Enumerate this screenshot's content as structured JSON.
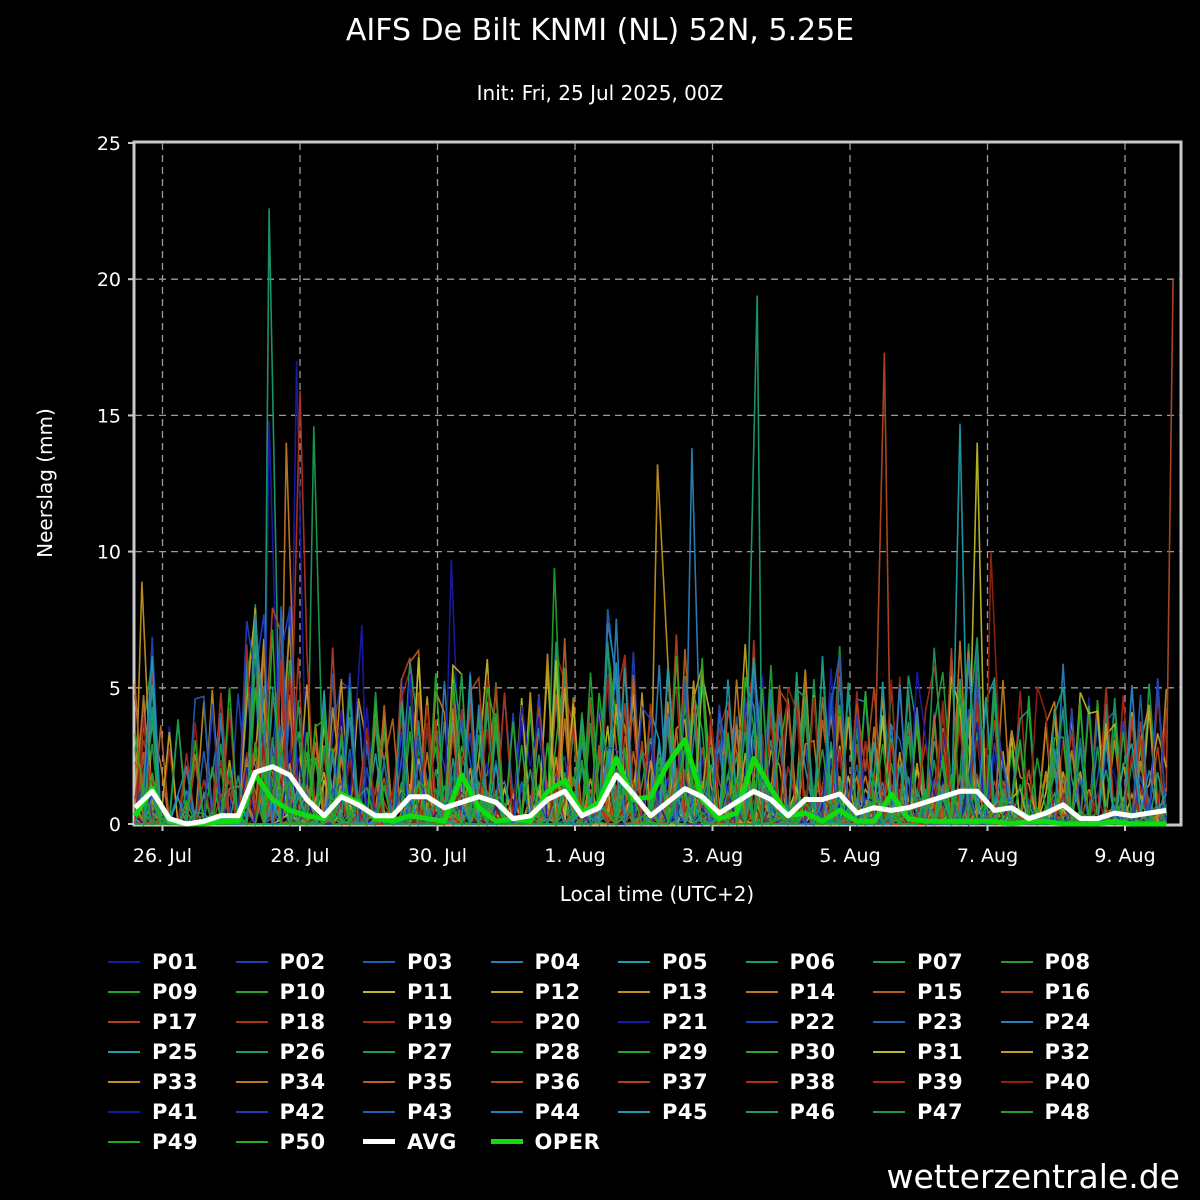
{
  "title": "AIFS De Bilt KNMI (NL) 52N, 5.25E",
  "subtitle": "Init: Fri, 25 Jul 2025, 00Z",
  "brand": "wetterzentrale.de",
  "chart_data": {
    "type": "line",
    "xlabel": "Local time (UTC+2)",
    "ylabel": "Neerslag (mm)",
    "ylim": [
      0,
      25
    ],
    "yticks": [
      0,
      5,
      10,
      15,
      20,
      25
    ],
    "xlim": [
      0,
      15.2
    ],
    "xticks": [
      {
        "label": "26. Jul",
        "x": 0.4
      },
      {
        "label": "28. Jul",
        "x": 2.4
      },
      {
        "label": "30. Jul",
        "x": 4.4
      },
      {
        "label": "1. Aug",
        "x": 6.4
      },
      {
        "label": "3. Aug",
        "x": 8.4
      },
      {
        "label": "5. Aug",
        "x": 10.4
      },
      {
        "label": "7. Aug",
        "x": 12.4
      },
      {
        "label": "9. Aug",
        "x": 14.4
      }
    ],
    "grid": true,
    "background": "#000000",
    "member_names": [
      "P01",
      "P02",
      "P03",
      "P04",
      "P05",
      "P06",
      "P07",
      "P08",
      "P09",
      "P10",
      "P11",
      "P12",
      "P13",
      "P14",
      "P15",
      "P16",
      "P17",
      "P18",
      "P19",
      "P20",
      "P21",
      "P22",
      "P23",
      "P24",
      "P25",
      "P26",
      "P27",
      "P28",
      "P29",
      "P30",
      "P31",
      "P32",
      "P33",
      "P34",
      "P35",
      "P36",
      "P37",
      "P38",
      "P39",
      "P40",
      "P41",
      "P42",
      "P43",
      "P44",
      "P45",
      "P46",
      "P47",
      "P48",
      "P49",
      "P50"
    ],
    "member_colors": [
      "#1a1aa8",
      "#1f3fb8",
      "#2060b0",
      "#2a80b8",
      "#1f9aa8",
      "#1a9a70",
      "#1a9a50",
      "#20a030",
      "#20a828",
      "#28a828",
      "#b8b828",
      "#c0a020",
      "#c09020",
      "#c07820",
      "#b86020",
      "#b04820",
      "#b04020",
      "#b03018",
      "#a82818",
      "#902010",
      "#1a1aa8",
      "#1f3fb8",
      "#2060b0",
      "#2a80b8",
      "#1f9aa8",
      "#1a9a70",
      "#1a9a50",
      "#20a030",
      "#20a828",
      "#28a828",
      "#b8b828",
      "#c0a020",
      "#c09020",
      "#c07820",
      "#b86020",
      "#b04820",
      "#b04020",
      "#b03018",
      "#a82818",
      "#902010",
      "#1a1aa8",
      "#1f3fb8",
      "#2060b0",
      "#2a80b8",
      "#1f9aa8",
      "#1a9a70",
      "#1a9a50",
      "#20a030",
      "#20a828",
      "#28a828"
    ],
    "peaks": [
      {
        "member": "P33",
        "x": 0.1,
        "y": 8.9
      },
      {
        "member": "P06",
        "x": 1.95,
        "y": 22.6
      },
      {
        "member": "P01",
        "x": 2.35,
        "y": 17.0
      },
      {
        "member": "P18",
        "x": 2.4,
        "y": 15.9
      },
      {
        "member": "P14",
        "x": 2.2,
        "y": 14.0
      },
      {
        "member": "P07",
        "x": 2.6,
        "y": 14.6
      },
      {
        "member": "P01",
        "x": 1.95,
        "y": 14.8
      },
      {
        "member": "P41",
        "x": 3.3,
        "y": 7.3
      },
      {
        "member": "P21",
        "x": 4.6,
        "y": 9.7
      },
      {
        "member": "P28",
        "x": 6.1,
        "y": 9.4
      },
      {
        "member": "P13",
        "x": 7.6,
        "y": 13.2
      },
      {
        "member": "P24",
        "x": 8.1,
        "y": 13.8
      },
      {
        "member": "P46",
        "x": 9.05,
        "y": 19.4
      },
      {
        "member": "P16",
        "x": 10.9,
        "y": 17.3
      },
      {
        "member": "P45",
        "x": 12.0,
        "y": 14.7
      },
      {
        "member": "P31",
        "x": 12.25,
        "y": 14.0
      },
      {
        "member": "P40",
        "x": 12.45,
        "y": 10.0
      },
      {
        "member": "P16",
        "x": 15.1,
        "y": 20.0
      }
    ],
    "series": [
      {
        "name": "AVG",
        "color": "#ffffff",
        "x": [
          0,
          0.25,
          0.5,
          0.75,
          1,
          1.25,
          1.5,
          1.75,
          2,
          2.25,
          2.5,
          2.75,
          3,
          3.25,
          3.5,
          3.75,
          4,
          4.25,
          4.5,
          4.75,
          5,
          5.25,
          5.5,
          5.75,
          6,
          6.25,
          6.5,
          6.75,
          7,
          7.25,
          7.5,
          7.75,
          8,
          8.25,
          8.5,
          8.75,
          9,
          9.25,
          9.5,
          9.75,
          10,
          10.25,
          10.5,
          10.75,
          11,
          11.25,
          11.5,
          11.75,
          12,
          12.25,
          12.5,
          12.75,
          13,
          13.25,
          13.5,
          13.75,
          14,
          14.25,
          14.5,
          14.75,
          15
        ],
        "y": [
          0.6,
          1.2,
          0.2,
          0.0,
          0.1,
          0.3,
          0.3,
          1.9,
          2.1,
          1.8,
          0.9,
          0.3,
          1.0,
          0.7,
          0.3,
          0.3,
          1.0,
          1.0,
          0.6,
          0.8,
          1.0,
          0.8,
          0.2,
          0.3,
          0.9,
          1.2,
          0.3,
          0.6,
          1.8,
          1.1,
          0.3,
          0.8,
          1.3,
          1.0,
          0.4,
          0.8,
          1.2,
          0.9,
          0.3,
          0.9,
          0.9,
          1.1,
          0.4,
          0.6,
          0.5,
          0.6,
          0.8,
          1.0,
          1.2,
          1.2,
          0.5,
          0.6,
          0.2,
          0.4,
          0.7,
          0.2,
          0.2,
          0.4,
          0.3,
          0.4,
          0.5
        ]
      },
      {
        "name": "OPER",
        "color": "#10dd10",
        "x": [
          0,
          0.25,
          0.5,
          0.75,
          1,
          1.25,
          1.5,
          1.75,
          2,
          2.25,
          2.5,
          2.75,
          3,
          3.25,
          3.5,
          3.75,
          4,
          4.25,
          4.5,
          4.75,
          5,
          5.25,
          5.5,
          5.75,
          6,
          6.25,
          6.5,
          6.75,
          7,
          7.25,
          7.5,
          7.75,
          8,
          8.25,
          8.5,
          8.75,
          9,
          9.25,
          9.5,
          9.75,
          10,
          10.25,
          10.5,
          10.75,
          11,
          11.25,
          11.5,
          11.75,
          12,
          12.25,
          12.5,
          12.75,
          13,
          13.25,
          13.5,
          13.75,
          14,
          14.25,
          14.5,
          14.75,
          15
        ],
        "y": [
          0.3,
          1.3,
          0.1,
          0.0,
          0.0,
          0.1,
          0.1,
          1.8,
          0.9,
          0.5,
          0.3,
          0.2,
          1.1,
          0.8,
          0.2,
          0.1,
          0.3,
          0.2,
          0.1,
          1.8,
          0.6,
          0.1,
          0.2,
          0.1,
          1.2,
          1.6,
          0.4,
          0.8,
          2.4,
          0.9,
          1.0,
          2.2,
          3.1,
          0.9,
          0.2,
          0.4,
          2.4,
          1.3,
          0.3,
          0.4,
          0.1,
          0.5,
          0.1,
          0.1,
          1.1,
          0.2,
          0.1,
          0.1,
          0.1,
          0.1,
          0.1,
          0.0,
          0.1,
          0.1,
          0.0,
          0.0,
          0.0,
          0.1,
          0.0,
          0.0,
          0.0
        ]
      }
    ]
  },
  "legend": {
    "members": [
      {
        "label": "P01",
        "color": "#1a1aa8"
      },
      {
        "label": "P02",
        "color": "#1f3fb8"
      },
      {
        "label": "P03",
        "color": "#2060b0"
      },
      {
        "label": "P04",
        "color": "#2a80b8"
      },
      {
        "label": "P05",
        "color": "#1f9aa8"
      },
      {
        "label": "P06",
        "color": "#1a9a70"
      },
      {
        "label": "P07",
        "color": "#1a9a50"
      },
      {
        "label": "P08",
        "color": "#20a030"
      },
      {
        "label": "P09",
        "color": "#20a828"
      },
      {
        "label": "P10",
        "color": "#28a828"
      },
      {
        "label": "P11",
        "color": "#b8b828"
      },
      {
        "label": "P12",
        "color": "#c0a020"
      },
      {
        "label": "P13",
        "color": "#c09020"
      },
      {
        "label": "P14",
        "color": "#c07820"
      },
      {
        "label": "P15",
        "color": "#b86020"
      },
      {
        "label": "P16",
        "color": "#b04820"
      },
      {
        "label": "P17",
        "color": "#b04020"
      },
      {
        "label": "P18",
        "color": "#b03018"
      },
      {
        "label": "P19",
        "color": "#a82818"
      },
      {
        "label": "P20",
        "color": "#902010"
      },
      {
        "label": "P21",
        "color": "#1a1aa8"
      },
      {
        "label": "P22",
        "color": "#1f3fb8"
      },
      {
        "label": "P23",
        "color": "#2060b0"
      },
      {
        "label": "P24",
        "color": "#2a80b8"
      },
      {
        "label": "P25",
        "color": "#1f9aa8"
      },
      {
        "label": "P26",
        "color": "#1a9a70"
      },
      {
        "label": "P27",
        "color": "#1a9a50"
      },
      {
        "label": "P28",
        "color": "#20a030"
      },
      {
        "label": "P29",
        "color": "#20a828"
      },
      {
        "label": "P30",
        "color": "#28a828"
      },
      {
        "label": "P31",
        "color": "#b8b828"
      },
      {
        "label": "P32",
        "color": "#c0a020"
      },
      {
        "label": "P33",
        "color": "#c09020"
      },
      {
        "label": "P34",
        "color": "#c07820"
      },
      {
        "label": "P35",
        "color": "#b86020"
      },
      {
        "label": "P36",
        "color": "#b04820"
      },
      {
        "label": "P37",
        "color": "#b04020"
      },
      {
        "label": "P38",
        "color": "#b03018"
      },
      {
        "label": "P39",
        "color": "#a82818"
      },
      {
        "label": "P40",
        "color": "#902010"
      },
      {
        "label": "P41",
        "color": "#1a1aa8"
      },
      {
        "label": "P42",
        "color": "#1f3fb8"
      },
      {
        "label": "P43",
        "color": "#2060b0"
      },
      {
        "label": "P44",
        "color": "#2a80b8"
      },
      {
        "label": "P45",
        "color": "#1f9aa8"
      },
      {
        "label": "P46",
        "color": "#1a9a70"
      },
      {
        "label": "P47",
        "color": "#1a9a50"
      },
      {
        "label": "P48",
        "color": "#20a030"
      },
      {
        "label": "P49",
        "color": "#20a828"
      },
      {
        "label": "P50",
        "color": "#28a828"
      },
      {
        "label": "AVG",
        "color": "#ffffff",
        "bold": true
      },
      {
        "label": "OPER",
        "color": "#10dd10",
        "bold": true
      }
    ]
  }
}
